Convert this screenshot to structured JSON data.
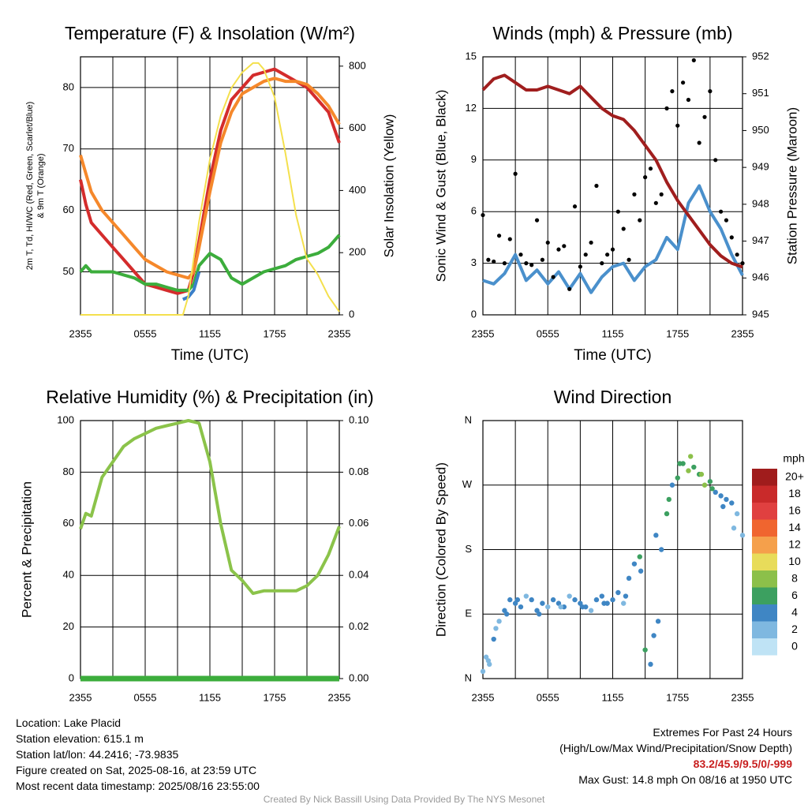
{
  "chart_data": [
    {
      "type": "line",
      "title": "Temperature (F) & Insolation (W/m²)",
      "xlabel": "Time (UTC)",
      "ylabel": "2m T, Td, HI/WC (Red, Green, Scarlet/Blue) & 9m T (Orange)",
      "y2label": "Solar Insolation (Yellow)",
      "x_ticks": [
        "2355",
        "0555",
        "1155",
        "1755",
        "2355"
      ],
      "ylim": [
        43,
        85
      ],
      "y_ticks": [
        50,
        60,
        70,
        80
      ],
      "y2lim": [
        0,
        830
      ],
      "y2_ticks": [
        0,
        200,
        400,
        600,
        800
      ],
      "grid": true,
      "series": [
        {
          "name": "2m T",
          "color": "#d42c2c",
          "axis": "left",
          "x": [
            0,
            0.5,
            1,
            2,
            3,
            4,
            5,
            6,
            7,
            8,
            9,
            10,
            10.5,
            11,
            12,
            13,
            14,
            15,
            16,
            17,
            18,
            19,
            20,
            21,
            22,
            23,
            24
          ],
          "values": [
            65,
            61,
            58,
            56,
            54,
            52,
            50,
            48,
            47.5,
            47,
            46.5,
            47,
            50,
            55,
            65,
            73,
            78,
            80,
            82,
            82.5,
            83,
            82,
            81,
            80,
            78,
            76,
            71
          ]
        },
        {
          "name": "9m T",
          "color": "#f5882b",
          "axis": "left",
          "x": [
            0,
            0.5,
            1,
            2,
            3,
            4,
            5,
            6,
            7,
            8,
            9,
            10,
            10.5,
            11,
            12,
            13,
            14,
            15,
            16,
            17,
            18,
            19,
            20,
            21,
            22,
            23,
            24
          ],
          "values": [
            69,
            66,
            63,
            60,
            58,
            56,
            54,
            52,
            51,
            50,
            49.5,
            49,
            50,
            54,
            63,
            71,
            76,
            79,
            80,
            81,
            81.5,
            81,
            81,
            80.5,
            79,
            77,
            74
          ]
        },
        {
          "name": "Td",
          "color": "#3cad3c",
          "axis": "left",
          "x": [
            0,
            0.5,
            1,
            2,
            3,
            4,
            5,
            6,
            7,
            8,
            9,
            10,
            10.5,
            11,
            12,
            13,
            14,
            15,
            16,
            17,
            18,
            19,
            20,
            21,
            22,
            23,
            24
          ],
          "values": [
            50,
            51,
            50,
            50,
            50,
            49.5,
            49,
            48,
            48,
            47.5,
            47,
            47,
            48,
            51,
            53,
            52,
            49,
            48,
            49,
            50,
            50.5,
            51,
            52,
            52.5,
            53,
            54,
            56
          ]
        },
        {
          "name": "HI/WC",
          "color": "#3a7fc8",
          "axis": "left",
          "x": [
            9.5,
            10,
            10.5,
            11
          ],
          "values": [
            45.5,
            45.9,
            47,
            50
          ]
        },
        {
          "name": "Solar Insolation",
          "color": "#f4e04d",
          "axis": "right",
          "x": [
            0,
            9.5,
            10,
            11,
            12,
            13,
            14,
            15,
            16,
            16.5,
            17,
            18,
            19,
            20,
            21,
            22,
            23,
            24
          ],
          "values": [
            0,
            0,
            60,
            300,
            500,
            640,
            730,
            780,
            810,
            810,
            790,
            700,
            520,
            320,
            180,
            130,
            60,
            10
          ]
        }
      ]
    },
    {
      "type": "scatter",
      "title": "Winds (mph) & Pressure (mb)",
      "xlabel": "Time (UTC)",
      "ylabel": "Sonic Wind & Gust (Blue, Black)",
      "y2label": "Station Pressure (Maroon)",
      "x_ticks": [
        "2355",
        "0555",
        "1155",
        "1755",
        "2355"
      ],
      "ylim": [
        0,
        15
      ],
      "y_ticks": [
        0,
        3,
        6,
        9,
        12,
        15
      ],
      "y2lim": [
        945,
        952
      ],
      "y2_ticks": [
        945,
        946,
        947,
        948,
        949,
        950,
        951,
        952
      ],
      "grid": true,
      "series": [
        {
          "name": "Sonic Wind",
          "color": "#4a90cc",
          "axis": "left",
          "mode": "line",
          "x": [
            0,
            1,
            2,
            3,
            4,
            5,
            6,
            7,
            8,
            9,
            10,
            11,
            12,
            13,
            14,
            15,
            16,
            17,
            18,
            19,
            20,
            21,
            22,
            23,
            24
          ],
          "values": [
            2,
            1.8,
            2.4,
            3.5,
            2,
            2.6,
            1.8,
            2.5,
            1.5,
            2.4,
            1.3,
            2.2,
            2.8,
            3.0,
            2.0,
            2.8,
            3.2,
            4.5,
            3.8,
            6.5,
            7.5,
            6.0,
            5.0,
            3.5,
            2.3
          ]
        },
        {
          "name": "Gust",
          "color": "#000000",
          "axis": "left",
          "mode": "points",
          "x": [
            0,
            0.5,
            1,
            1.5,
            2,
            2.5,
            3,
            3.5,
            4,
            4.5,
            5,
            5.5,
            6,
            6.5,
            7,
            7.5,
            8,
            8.5,
            9,
            9.5,
            10,
            10.5,
            11,
            11.5,
            12,
            12.5,
            13,
            13.5,
            14,
            14.5,
            15,
            15.5,
            16,
            16.5,
            17,
            17.5,
            18,
            18.5,
            19,
            19.5,
            20,
            20.5,
            21,
            21.5,
            22,
            22.5,
            23,
            23.5,
            24
          ],
          "values": [
            5.8,
            3.2,
            3.1,
            4.6,
            3.0,
            4.4,
            8.2,
            3.5,
            3.0,
            2.9,
            5.5,
            3.2,
            4.2,
            2.2,
            3.8,
            4.0,
            1.5,
            6.3,
            2.8,
            3.5,
            4.2,
            7.5,
            3.0,
            3.5,
            3.8,
            6.0,
            5.0,
            3.2,
            7.0,
            5.5,
            8.0,
            8.5,
            6.5,
            7.0,
            12.0,
            13.0,
            11.0,
            13.5,
            12.5,
            14.8,
            10.0,
            11.5,
            13.0,
            9.0,
            6.0,
            5.5,
            4.5,
            3.5,
            3.0
          ]
        },
        {
          "name": "Station Pressure",
          "color": "#a01e1e",
          "axis": "right",
          "mode": "line",
          "x": [
            0,
            1,
            2,
            3,
            4,
            5,
            6,
            7,
            8,
            9,
            10,
            11,
            12,
            13,
            14,
            15,
            16,
            17,
            18,
            19,
            20,
            21,
            22,
            23,
            24
          ],
          "values": [
            951.1,
            951.4,
            951.5,
            951.3,
            951.1,
            951.1,
            951.2,
            951.1,
            951.0,
            951.2,
            950.9,
            950.6,
            950.4,
            950.3,
            950.0,
            949.6,
            949.2,
            948.6,
            948.1,
            947.7,
            947.3,
            946.9,
            946.6,
            946.4,
            946.3
          ]
        }
      ]
    },
    {
      "type": "line",
      "title": "Relative Humidity (%) & Precipitation (in)",
      "ylabel": "Percent & Precipitation",
      "x_ticks": [
        "2355",
        "0555",
        "1155",
        "1755",
        "2355"
      ],
      "ylim": [
        0,
        100
      ],
      "y_ticks": [
        0,
        20,
        40,
        60,
        80,
        100
      ],
      "y2lim": [
        0,
        0.1
      ],
      "y2_ticks": [
        "0.00",
        "0.02",
        "0.04",
        "0.06",
        "0.08",
        "0.10"
      ],
      "grid": true,
      "series": [
        {
          "name": "Relative Humidity",
          "color": "#8bc34a",
          "axis": "left",
          "x": [
            0,
            0.5,
            1,
            2,
            3,
            4,
            5,
            6,
            7,
            8,
            9,
            10,
            11,
            12,
            13,
            14,
            15,
            16,
            17,
            18,
            19,
            20,
            21,
            22,
            23,
            24
          ],
          "values": [
            58,
            64,
            63,
            78,
            84,
            90,
            93,
            95,
            97,
            98,
            99,
            100,
            99,
            84,
            60,
            42,
            38,
            33,
            34,
            34,
            34,
            34,
            36,
            40,
            48,
            59
          ]
        },
        {
          "name": "Precipitation",
          "color": "#3cad3c",
          "axis": "right",
          "x": [
            0,
            24
          ],
          "values": [
            0,
            0
          ]
        }
      ]
    },
    {
      "type": "scatter",
      "title": "Wind Direction",
      "ylabel": "Direction (Colored By Speed)",
      "x_ticks": [
        "2355",
        "0555",
        "1155",
        "1755",
        "2355"
      ],
      "y_ticks": [
        "N",
        "E",
        "S",
        "W",
        "N"
      ],
      "ylim": [
        0,
        360
      ],
      "grid": true,
      "colorbar": {
        "unit": "mph",
        "labels": [
          "20+",
          "18",
          "16",
          "14",
          "12",
          "10",
          "8",
          "6",
          "4",
          "2",
          "0"
        ],
        "colors": [
          "#a01c1c",
          "#c92a2a",
          "#e04040",
          "#f0652f",
          "#f5a04b",
          "#e8dc5a",
          "#8cc04a",
          "#3ca060",
          "#3f86c4",
          "#7fb8e0",
          "#bfe3f5"
        ]
      },
      "points": {
        "x": [
          0,
          0.3,
          0.6,
          1,
          1.5,
          2,
          2.5,
          3,
          3.5,
          4,
          4.5,
          5,
          5.5,
          6,
          6.5,
          7,
          7.5,
          8,
          8.5,
          9,
          9.5,
          10,
          10.5,
          11,
          11.5,
          12,
          12.5,
          13,
          13.5,
          14,
          14.5,
          15,
          15.5,
          16,
          16.5,
          17,
          17.5,
          18,
          18.5,
          19,
          19.5,
          20,
          20.5,
          21,
          21.5,
          22,
          22.5,
          23,
          23.5,
          24,
          0.5,
          1.2,
          2.2,
          3.2,
          5.2,
          7.2,
          9.2,
          11.2,
          13.2,
          14.6,
          15.8,
          16.2,
          17.2,
          18.2,
          19.2,
          20.2,
          21.2,
          22.2,
          23.2
        ],
        "speed": [
          2,
          2,
          1,
          3,
          2,
          3,
          4,
          3,
          4,
          2,
          3,
          4,
          3,
          2,
          3,
          4,
          3,
          2,
          3,
          4,
          3,
          2,
          3,
          4,
          3,
          4,
          3,
          2,
          3,
          4,
          5,
          5,
          4,
          3,
          4,
          6,
          4,
          5,
          6,
          7,
          5,
          6,
          7,
          5,
          4,
          4,
          3,
          3,
          2,
          2,
          1,
          2,
          3,
          4,
          3,
          2,
          3,
          4,
          3,
          4,
          4,
          3,
          5,
          6,
          7,
          8,
          6,
          4,
          2
        ],
        "direction": [
          10,
          30,
          20,
          55,
          80,
          95,
          110,
          105,
          100,
          115,
          110,
          95,
          105,
          100,
          110,
          105,
          100,
          115,
          110,
          105,
          100,
          95,
          110,
          115,
          105,
          110,
          120,
          105,
          140,
          160,
          170,
          40,
          20,
          200,
          180,
          230,
          270,
          280,
          300,
          290,
          295,
          285,
          270,
          275,
          260,
          255,
          250,
          245,
          230,
          200,
          25,
          70,
          90,
          110,
          90,
          100,
          100,
          105,
          115,
          150,
          60,
          80,
          250,
          300,
          310,
          285,
          265,
          240,
          210
        ]
      }
    }
  ],
  "footer": {
    "location": "Location: Lake Placid",
    "elevation": "Station elevation: 615.1 m",
    "latlon": "Station lat/lon: 44.2416; -73.9835",
    "created": "Figure created on Sat, 2025-08-16, at 23:59 UTC",
    "recent": "Most recent data timestamp: 2025/08/16 23:55:00",
    "extremes_title": "Extremes For Past 24 Hours",
    "extremes_legend": "(High/Low/Max Wind/Precipitation/Snow Depth)",
    "extremes_values": "83.2/45.9/9.5/0/-999",
    "max_gust": "Max Gust: 14.8 mph On 08/16 at 1950 UTC",
    "credit": "Created By Nick Bassill Using Data Provided By The NYS Mesonet"
  }
}
